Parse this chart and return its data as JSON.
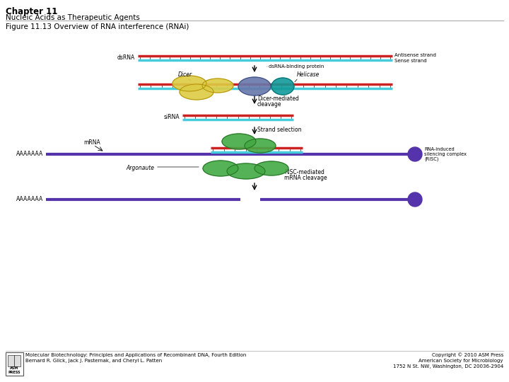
{
  "title_bold": "Chapter 11",
  "title_sub": "Nucleic Acids as Therapeutic Agents",
  "figure_label": "Figure 11.13 Overview of RNA interference (RNAi)",
  "footer_left_line1": "Molecular Biotechnology: Principles and Applications of Recombinant DNA, Fourth Edition",
  "footer_left_line2": "Bernard R. Glick, Jack J. Pasternak, and Cheryl L. Patten",
  "footer_right_line1": "Copyright © 2010 ASM Press",
  "footer_right_line2": "American Society for Microbiology",
  "footer_right_line3": "1752 N St. NW, Washington, DC 20036-2904",
  "bg_color": "#ffffff",
  "red_color": "#cc2222",
  "cyan_color": "#44ccdd",
  "purple_color": "#5533aa",
  "green_color": "#44aa44",
  "yellow_color": "#ddcc44",
  "blue_gray_color": "#6677aa",
  "teal_color": "#119999",
  "dark_green": "#226622",
  "text_color": "#111111"
}
